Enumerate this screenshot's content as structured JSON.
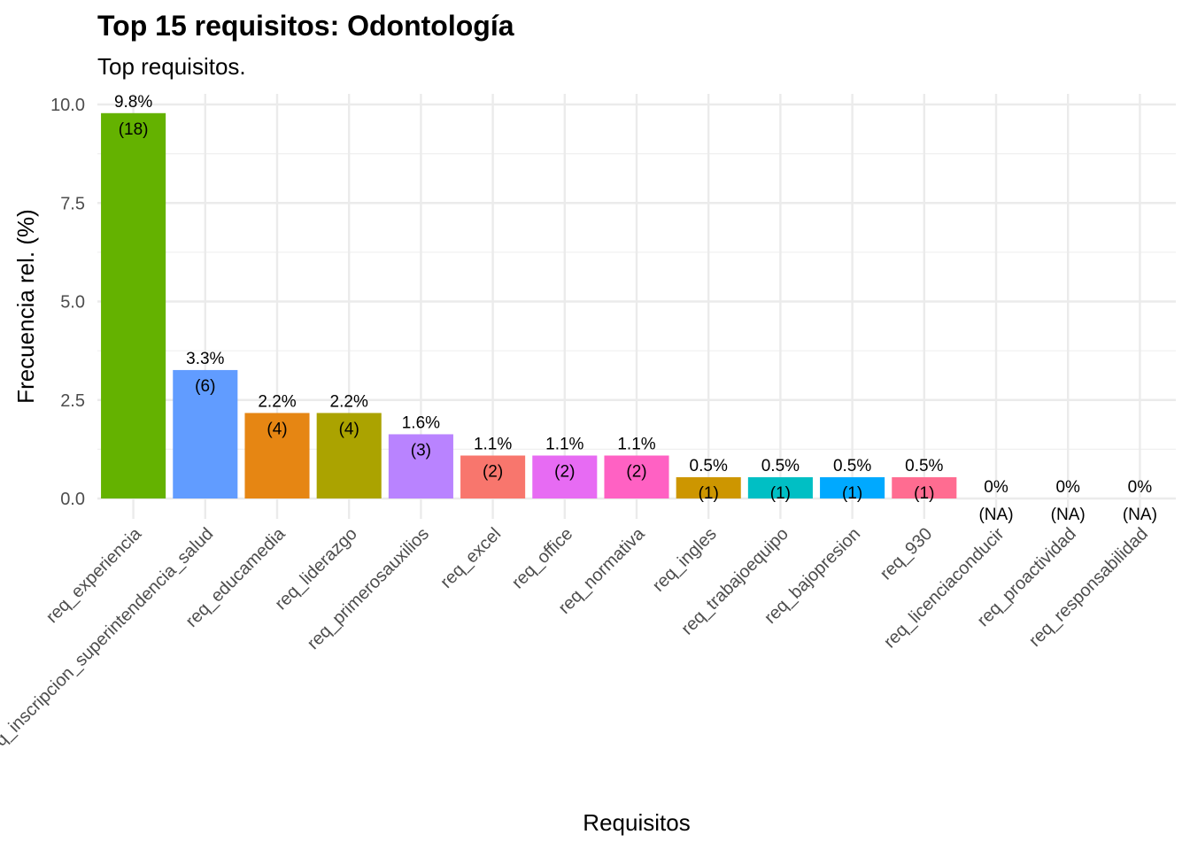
{
  "chart_data": {
    "type": "bar",
    "title": "Top 15 requisitos: Odontología",
    "subtitle": "Top requisitos.",
    "xlabel": "Requisitos",
    "ylabel": "Frecuencia rel. (%)",
    "ylim": [
      0,
      10.2
    ],
    "yticks": [
      0,
      2.5,
      5,
      7.5,
      10
    ],
    "ytick_labels": [
      "0.0",
      "2.5",
      "5.0",
      "7.5",
      "10.0"
    ],
    "grid": true,
    "categories": [
      "req_experiencia",
      "req_inscripcion_superintendencia_salud",
      "req_educamedia",
      "req_liderazgo",
      "req_primerosauxilios",
      "req_excel",
      "req_office",
      "req_normativa",
      "req_ingles",
      "req_trabajoequipo",
      "req_bajopresion",
      "req_930",
      "req_licenciaconducir",
      "req_proactividad",
      "req_responsabilidad"
    ],
    "values": [
      9.78,
      3.26,
      2.17,
      2.17,
      1.63,
      1.09,
      1.09,
      1.09,
      0.54,
      0.54,
      0.54,
      0.54,
      0,
      0,
      0
    ],
    "pct_labels": [
      "9.8%",
      "3.3%",
      "2.2%",
      "2.2%",
      "1.6%",
      "1.1%",
      "1.1%",
      "1.1%",
      "0.5%",
      "0.5%",
      "0.5%",
      "0.5%",
      "0%",
      "0%",
      "0%"
    ],
    "count_labels": [
      "(18)",
      "(6)",
      "(4)",
      "(4)",
      "(3)",
      "(2)",
      "(2)",
      "(2)",
      "(1)",
      "(1)",
      "(1)",
      "(1)",
      "(NA)",
      "(NA)",
      "(NA)"
    ],
    "colors": [
      "#64B200",
      "#619CFF",
      "#E68613",
      "#ABA300",
      "#B983FF",
      "#F8766D",
      "#E76BF3",
      "#FF61C3",
      "#CD9600",
      "#00BFC4",
      "#00A9FF",
      "#FF6C91",
      "#00BE67",
      "#00C1A9",
      "#ED68ED"
    ],
    "legend": "none"
  }
}
